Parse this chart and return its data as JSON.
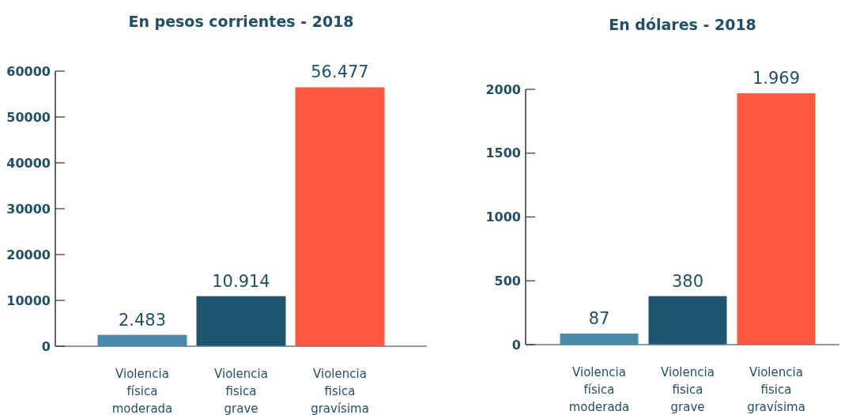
{
  "chart_data": [
    {
      "type": "bar",
      "title": "En pesos corrientes - 2018",
      "categories": [
        "Violencia física moderada",
        "Violencia fisica grave",
        "Violencia fisica gravísima"
      ],
      "values": [
        2483,
        10914,
        56477
      ],
      "colors": [
        "#4a8aab",
        "#1e5470",
        "#ff5740"
      ],
      "value_labels": [
        "2.483",
        "10.914",
        "56.477"
      ],
      "ylim": [
        0,
        60000
      ],
      "yticks": [
        0,
        10000,
        20000,
        30000,
        40000,
        50000,
        60000
      ],
      "grid": false
    },
    {
      "type": "bar",
      "title": "En dólares - 2018",
      "categories": [
        "Violencia física moderada",
        "Violencia fisica grave",
        "Violencia fisica gravísima"
      ],
      "values": [
        87,
        380,
        1969
      ],
      "colors": [
        "#4a8aab",
        "#1e5470",
        "#ff5740"
      ],
      "value_labels": [
        "87",
        "380",
        "1.969"
      ],
      "ylim": [
        0,
        2000
      ],
      "yticks": [
        0,
        500,
        1000,
        1500,
        2000
      ],
      "grid": false
    }
  ]
}
